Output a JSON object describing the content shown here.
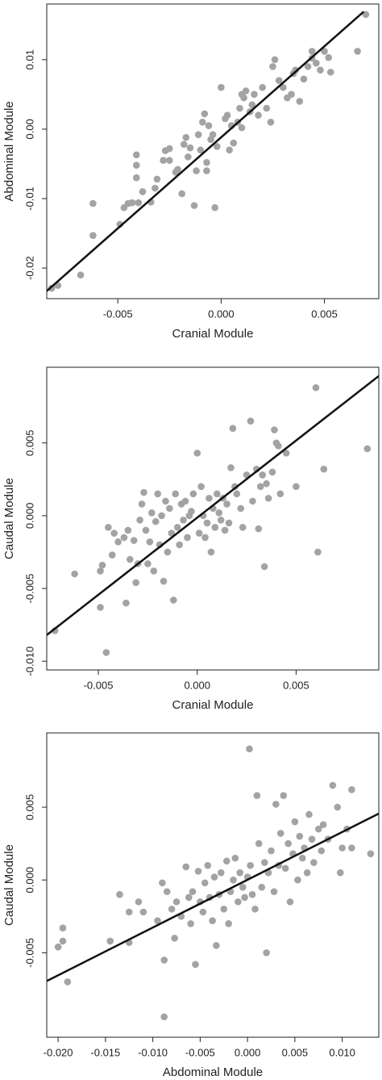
{
  "chart_data": [
    {
      "type": "scatter",
      "x_label": "Cranial Module",
      "y_label": "Abdominal Module",
      "color": "#a3a3a3",
      "line_color": "#111111",
      "xlim": [
        -0.00844,
        0.00763
      ],
      "ylim": [
        -0.0244,
        0.018
      ],
      "xticks": [
        -0.005,
        {
          "value": 0,
          "label": "0.000"
        },
        0.005
      ],
      "yticks": [
        -0.02,
        -0.01,
        {
          "value": 0,
          "label": "0.00"
        },
        0.01
      ],
      "x": [
        -0.0082,
        -0.0079,
        -0.0068,
        -0.0062,
        -0.0062,
        -0.0049,
        -0.0047,
        -0.0045,
        -0.0043,
        -0.004,
        -0.0041,
        -0.0041,
        -0.0041,
        -0.0038,
        -0.0034,
        -0.0032,
        -0.0031,
        -0.0028,
        -0.0027,
        -0.0025,
        -0.0025,
        -0.0022,
        -0.0021,
        -0.0019,
        -0.0018,
        -0.0017,
        -0.0016,
        -0.0015,
        -0.0013,
        -0.0012,
        -0.0011,
        -0.001,
        -0.0009,
        -0.0008,
        -0.0007,
        -0.0006,
        -0.0005,
        -0.0004,
        -0.0003,
        -0.0002,
        0,
        0.0002,
        0.0003,
        0.0004,
        0.0005,
        0.0006,
        0.0008,
        0.0009,
        0.001,
        0.0011,
        0.0012,
        0.0014,
        0.0015,
        0.0016,
        0.0018,
        0.002,
        0.0022,
        0.0024,
        0.0025,
        0.0026,
        0.0028,
        0.003,
        0.0032,
        0.0034,
        0.0035,
        0.0036,
        0.0038,
        0.004,
        0.0042,
        0.0044,
        0.0046,
        0.0048,
        0.005,
        0.0052,
        0.0053,
        0.0066,
        0.007,
        0.0044,
        -0.0007,
        0.001
      ],
      "values": [
        -0.0229,
        -0.0225,
        -0.021,
        -0.0153,
        -0.0107,
        -0.0137,
        -0.0113,
        -0.0107,
        -0.0106,
        -0.0106,
        -0.007,
        -0.0052,
        -0.0037,
        -0.009,
        -0.0105,
        -0.0085,
        -0.0072,
        -0.0045,
        -0.0031,
        -0.0045,
        -0.0028,
        -0.0062,
        -0.0058,
        -0.0093,
        -0.0022,
        -0.0012,
        -0.004,
        -0.0027,
        -0.011,
        -0.006,
        -0.0008,
        -0.003,
        0.001,
        0.0022,
        -0.0048,
        0.0005,
        -0.0015,
        -0.0008,
        -0.0113,
        -0.0025,
        0.006,
        0.0015,
        0.002,
        -0.003,
        0.0005,
        -0.002,
        0.001,
        0.003,
        0.0002,
        0.0045,
        0.0055,
        0.0025,
        0.0035,
        0.005,
        0.002,
        0.006,
        0.003,
        0.001,
        0.009,
        0.01,
        0.007,
        0.006,
        0.0045,
        0.005,
        0.008,
        0.0085,
        0.004,
        0.0072,
        0.009,
        0.0102,
        0.0095,
        0.0085,
        0.0112,
        0.0103,
        0.0082,
        0.0112,
        0.0165,
        0.0112,
        -0.006,
        0.005
      ],
      "trend_line": {
        "x": [
          -0.00844,
          0.0069
        ],
        "y": [
          -0.0233,
          0.0169
        ]
      }
    },
    {
      "type": "scatter",
      "x_label": "Cranial Module",
      "y_label": "Caudal Module",
      "color": "#a3a3a3",
      "line_color": "#111111",
      "xlim": [
        -0.00761,
        0.00918
      ],
      "ylim": [
        -0.0106,
        0.0102
      ],
      "xticks": [
        -0.005,
        {
          "value": 0,
          "label": "0.000"
        },
        0.005
      ],
      "yticks": [
        {
          "value": -0.01,
          "label": "-0.010"
        },
        -0.005,
        {
          "value": 0,
          "label": "0.000"
        },
        0.005
      ],
      "x": [
        -0.0072,
        -0.0062,
        -0.0049,
        -0.0049,
        -0.0048,
        -0.0046,
        -0.0045,
        -0.0043,
        -0.0042,
        -0.004,
        -0.0037,
        -0.0036,
        -0.0035,
        -0.0034,
        -0.0032,
        -0.0031,
        -0.003,
        -0.0029,
        -0.0028,
        -0.0027,
        -0.0026,
        -0.0025,
        -0.0024,
        -0.0023,
        -0.0022,
        -0.0021,
        -0.002,
        -0.0019,
        -0.0018,
        -0.0017,
        -0.0016,
        -0.0015,
        -0.0014,
        -0.0013,
        -0.0012,
        -0.0011,
        -0.001,
        -0.0009,
        -0.0008,
        -0.0007,
        -0.0006,
        -0.0005,
        -0.0004,
        -0.0003,
        -0.0002,
        0,
        0.0001,
        0.0002,
        0.0003,
        0.0004,
        0.0005,
        0.0006,
        0.0007,
        0.0008,
        0.0009,
        0.001,
        0.0011,
        0.0012,
        0.0013,
        0.0014,
        0.0015,
        0.0016,
        0.0017,
        0.0018,
        0.0019,
        0.002,
        0.0022,
        0.0023,
        0.0025,
        0.0027,
        0.0028,
        0.003,
        0.0031,
        0.0032,
        0.0033,
        0.0034,
        0.0035,
        0.0036,
        0.0038,
        0.0039,
        0.004,
        0.0041,
        0.0042,
        0.0045,
        0.005,
        0.006,
        0.0061,
        0.0064,
        0.0086
      ],
      "values": [
        -0.0079,
        -0.004,
        -0.0063,
        -0.0038,
        -0.0034,
        -0.0094,
        -0.0008,
        -0.0027,
        -0.0012,
        -0.0018,
        -0.0015,
        -0.006,
        -0.001,
        -0.003,
        -0.0017,
        -0.0046,
        -0.0033,
        -0.0003,
        0.0008,
        0.0016,
        -0.001,
        -0.0033,
        -0.0018,
        0.0002,
        -0.0038,
        -0.0004,
        0.0015,
        -0.002,
        0,
        -0.0045,
        0.001,
        -0.0025,
        0.0005,
        -0.0012,
        -0.0058,
        0.0015,
        -0.0008,
        -0.002,
        0.0008,
        -0.0003,
        0.001,
        -0.0015,
        0,
        0.0003,
        0.0015,
        0.0043,
        -0.0012,
        0.002,
        0,
        -0.0015,
        -0.0005,
        0.0012,
        -0.0025,
        0.0005,
        -0.0008,
        0.0015,
        0.0002,
        -0.0003,
        0.0012,
        -0.001,
        0.0008,
        -0.0005,
        0.0033,
        0.006,
        0.002,
        0.0015,
        0.0005,
        -0.0008,
        0.0028,
        0.0065,
        0.001,
        0.0032,
        -0.0009,
        0.002,
        0.0028,
        -0.0035,
        0.0022,
        0.0012,
        0.003,
        0.0059,
        0.005,
        0.0048,
        0.0015,
        0.0043,
        0.002,
        0.0088,
        -0.0025,
        0.0032,
        0.0046
      ],
      "trend_line": {
        "x": [
          -0.00761,
          0.00918
        ],
        "y": [
          -0.0082,
          0.0096
        ]
      }
    },
    {
      "type": "scatter",
      "x_label": "Abdominal Module",
      "y_label": "Caudal Module",
      "color": "#a3a3a3",
      "line_color": "#111111",
      "xlim": [
        -0.0212,
        0.01386
      ],
      "ylim": [
        -0.0108,
        0.0101
      ],
      "xticks": [
        {
          "value": -0.02,
          "label": "-0.020"
        },
        -0.015,
        {
          "value": -0.01,
          "label": "-0.010"
        },
        -0.005,
        {
          "value": 0,
          "label": "0.000"
        },
        0.005,
        {
          "value": 0.01,
          "label": "0.010"
        }
      ],
      "yticks": [
        -0.005,
        {
          "value": 0,
          "label": "0.000"
        },
        0.005
      ],
      "x": [
        -0.02,
        -0.0195,
        -0.0195,
        -0.019,
        -0.0145,
        -0.0135,
        -0.0125,
        -0.0125,
        -0.0115,
        -0.011,
        -0.0095,
        -0.009,
        -0.0088,
        -0.0088,
        -0.0085,
        -0.008,
        -0.0077,
        -0.0075,
        -0.007,
        -0.0065,
        -0.0062,
        -0.006,
        -0.0058,
        -0.0055,
        -0.0052,
        -0.005,
        -0.0047,
        -0.0045,
        -0.0042,
        -0.004,
        -0.0037,
        -0.0035,
        -0.0033,
        -0.003,
        -0.0028,
        -0.0025,
        -0.0022,
        -0.002,
        -0.0018,
        -0.0015,
        -0.0013,
        -0.001,
        -0.0008,
        -0.0005,
        -0.0003,
        0,
        0.0002,
        0.0003,
        0.0005,
        0.0008,
        0.001,
        0.0012,
        0.0015,
        0.0018,
        0.002,
        0.0022,
        0.0025,
        0.0028,
        0.003,
        0.0033,
        0.0035,
        0.0038,
        0.004,
        0.0043,
        0.0045,
        0.0048,
        0.005,
        0.0053,
        0.0055,
        0.0058,
        0.006,
        0.0063,
        0.0065,
        0.0068,
        0.007,
        0.0075,
        0.0078,
        0.008,
        0.0085,
        0.009,
        0.0095,
        0.0098,
        0.01,
        0.0105,
        0.011,
        0.011,
        0.013
      ],
      "values": [
        -0.0046,
        -0.0033,
        -0.0042,
        -0.007,
        -0.0042,
        -0.001,
        -0.0022,
        -0.0043,
        -0.0015,
        -0.0022,
        -0.0028,
        -0.0002,
        -0.0055,
        -0.0094,
        -0.0008,
        -0.002,
        -0.004,
        -0.0015,
        -0.0025,
        0.0009,
        -0.0012,
        -0.003,
        -0.0008,
        -0.0058,
        0.0006,
        -0.0015,
        -0.0022,
        -0.0002,
        0.001,
        -0.0012,
        -0.0028,
        0.0002,
        -0.0045,
        -0.001,
        0.0005,
        -0.002,
        0.0013,
        -0.003,
        -0.0008,
        0,
        0.0015,
        -0.0015,
        0.0005,
        -0.0005,
        -0.0012,
        0.0002,
        0.009,
        0.001,
        -0.001,
        -0.002,
        0.0058,
        0.0025,
        -0.0005,
        0.0012,
        -0.005,
        0.0005,
        0.002,
        -0.0008,
        0.0052,
        0.001,
        0.0032,
        0.0058,
        0.0008,
        0.0025,
        -0.0015,
        0.0018,
        0.004,
        0,
        0.003,
        0.0015,
        0.0022,
        0.0005,
        0.0045,
        0.0028,
        0.0012,
        0.0035,
        0.002,
        0.0038,
        0.0028,
        0.0065,
        0.005,
        0.0005,
        0.0022,
        0.0035,
        0.0062,
        0.0022,
        0.0018
      ],
      "trend_line": {
        "x": [
          -0.0212,
          0.01386
        ],
        "y": [
          -0.00694,
          0.00456
        ]
      }
    }
  ]
}
